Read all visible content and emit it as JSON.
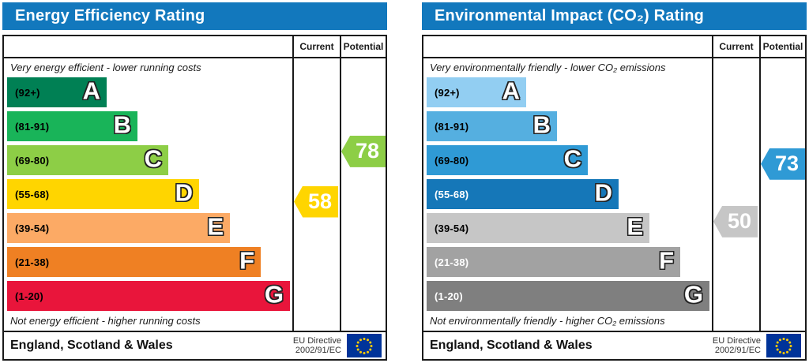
{
  "chart_data": [
    {
      "type": "bar",
      "title": "Energy Efficiency Rating",
      "header_color": "#1278bd",
      "column_headers": [
        "Current",
        "Potential"
      ],
      "top_caption": "Very energy efficient - lower running costs",
      "bottom_caption": "Not energy efficient - higher running costs",
      "bands": [
        {
          "letter": "A",
          "range_label": "(92+)",
          "min": 92,
          "max": 100,
          "color": "#008054",
          "range_text_color": "#000000"
        },
        {
          "letter": "B",
          "range_label": "(81-91)",
          "min": 81,
          "max": 91,
          "color": "#19b459",
          "range_text_color": "#000000"
        },
        {
          "letter": "C",
          "range_label": "(69-80)",
          "min": 69,
          "max": 80,
          "color": "#8dce46",
          "range_text_color": "#000000"
        },
        {
          "letter": "D",
          "range_label": "(55-68)",
          "min": 55,
          "max": 68,
          "color": "#ffd500",
          "range_text_color": "#000000"
        },
        {
          "letter": "E",
          "range_label": "(39-54)",
          "min": 39,
          "max": 54,
          "color": "#fcaa65",
          "range_text_color": "#000000"
        },
        {
          "letter": "F",
          "range_label": "(21-38)",
          "min": 21,
          "max": 38,
          "color": "#ef8023",
          "range_text_color": "#000000"
        },
        {
          "letter": "G",
          "range_label": "(1-20)",
          "min": 1,
          "max": 20,
          "color": "#e9153b",
          "range_text_color": "#000000"
        }
      ],
      "current": {
        "value": 58,
        "band": "D",
        "color": "#ffd500"
      },
      "potential": {
        "value": 78,
        "band": "C",
        "color": "#8dce46"
      },
      "footer": {
        "region": "England, Scotland & Wales",
        "directive": [
          "EU Directive",
          "2002/91/EC"
        ]
      },
      "flag_colors": {
        "background": "#003399",
        "stars": "#ffcc00"
      }
    },
    {
      "type": "bar",
      "title": "Environmental Impact (CO₂) Rating",
      "header_color": "#1278bd",
      "column_headers": [
        "Current",
        "Potential"
      ],
      "top_caption": "Very environmentally friendly - lower CO₂ emissions",
      "bottom_caption": "Not environmentally friendly - higher CO₂ emissions",
      "bands": [
        {
          "letter": "A",
          "range_label": "(92+)",
          "min": 92,
          "max": 100,
          "color": "#92cef2",
          "range_text_color": "#000000"
        },
        {
          "letter": "B",
          "range_label": "(81-91)",
          "min": 81,
          "max": 91,
          "color": "#55afe0",
          "range_text_color": "#000000"
        },
        {
          "letter": "C",
          "range_label": "(69-80)",
          "min": 69,
          "max": 80,
          "color": "#2f9ad5",
          "range_text_color": "#000000"
        },
        {
          "letter": "D",
          "range_label": "(55-68)",
          "min": 55,
          "max": 68,
          "color": "#1577b8",
          "range_text_color": "#ffffff"
        },
        {
          "letter": "E",
          "range_label": "(39-54)",
          "min": 39,
          "max": 54,
          "color": "#c6c6c6",
          "range_text_color": "#000000"
        },
        {
          "letter": "F",
          "range_label": "(21-38)",
          "min": 21,
          "max": 38,
          "color": "#a2a2a2",
          "range_text_color": "#ffffff"
        },
        {
          "letter": "G",
          "range_label": "(1-20)",
          "min": 1,
          "max": 20,
          "color": "#7f7f7f",
          "range_text_color": "#ffffff"
        }
      ],
      "current": {
        "value": 50,
        "band": "E",
        "color": "#c6c6c6"
      },
      "potential": {
        "value": 73,
        "band": "C",
        "color": "#2f9ad5"
      },
      "footer": {
        "region": "England, Scotland & Wales",
        "directive": [
          "EU Directive",
          "2002/91/EC"
        ]
      },
      "flag_colors": {
        "background": "#003399",
        "stars": "#ffcc00"
      }
    }
  ]
}
